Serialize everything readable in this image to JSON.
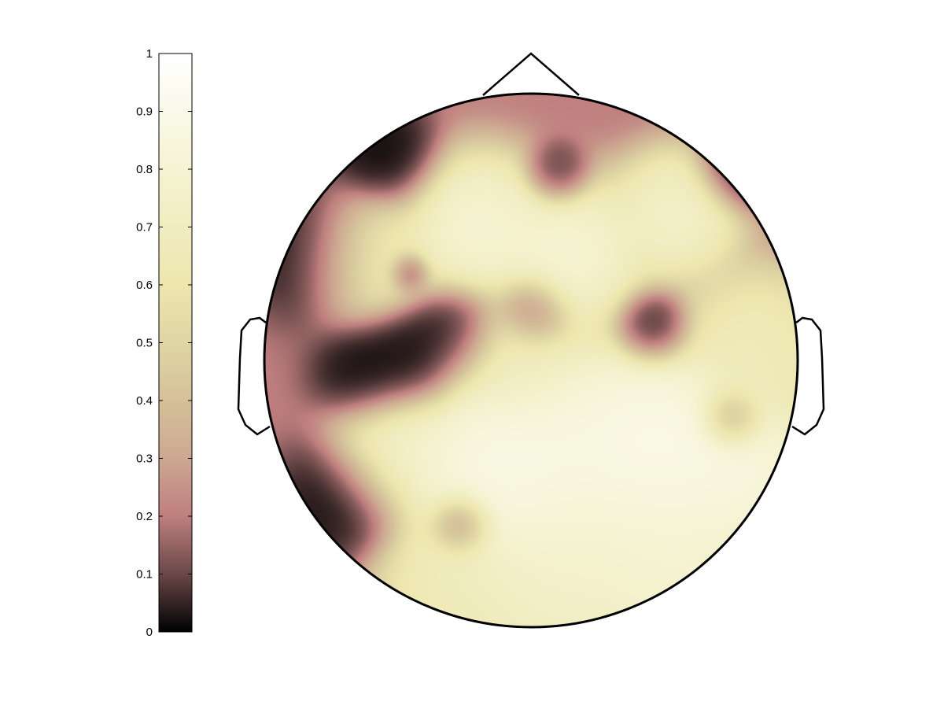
{
  "chart_data": {
    "type": "heatmap",
    "subtype": "scalp-topography",
    "title": "",
    "xlabel": "",
    "ylabel": "",
    "colorbar": {
      "position": "left",
      "clim": [
        0,
        1
      ],
      "ticks": [
        0,
        0.1,
        0.2,
        0.3,
        0.4,
        0.5,
        0.6,
        0.7,
        0.8,
        0.9,
        1
      ],
      "tick_labels": [
        "0",
        "0.1",
        "0.2",
        "0.3",
        "0.4",
        "0.5",
        "0.6",
        "0.7",
        "0.8",
        "0.9",
        "1"
      ],
      "colormap_stops": [
        {
          "v": 0.0,
          "color": "#000000"
        },
        {
          "v": 0.1,
          "color": "#6a4848"
        },
        {
          "v": 0.2,
          "color": "#bf7f7f"
        },
        {
          "v": 0.3,
          "color": "#cda891"
        },
        {
          "v": 0.45,
          "color": "#d9cc9f"
        },
        {
          "v": 0.6,
          "color": "#ede6ae"
        },
        {
          "v": 0.8,
          "color": "#f5f3d2"
        },
        {
          "v": 1.0,
          "color": "#ffffff"
        }
      ]
    },
    "head": {
      "outline": true,
      "nose": "top",
      "ears": [
        "left",
        "right"
      ]
    },
    "background_value": 0.2,
    "field_sources": [
      {
        "x": -0.8,
        "y": 0.4,
        "value": 0.0,
        "spread": 0.13
      },
      {
        "x": -0.62,
        "y": -0.05,
        "value": 0.0,
        "spread": 0.1
      },
      {
        "x": -0.45,
        "y": 0.02,
        "value": 0.0,
        "spread": 0.1
      },
      {
        "x": -0.28,
        "y": 0.1,
        "value": 0.0,
        "spread": 0.09
      },
      {
        "x": -0.72,
        "y": -0.52,
        "value": 0.0,
        "spread": 0.12
      },
      {
        "x": -0.55,
        "y": 0.77,
        "value": 0.0,
        "spread": 0.1
      },
      {
        "x": 0.78,
        "y": 0.72,
        "value": 0.0,
        "spread": 0.08
      },
      {
        "x": 0.46,
        "y": 0.12,
        "value": 0.0,
        "spread": 0.07
      },
      {
        "x": 0.1,
        "y": 0.7,
        "value": 0.05,
        "spread": 0.06
      },
      {
        "x": -0.46,
        "y": 0.33,
        "value": 0.05,
        "spread": 0.04
      },
      {
        "x": -0.26,
        "y": -0.62,
        "value": 0.08,
        "spread": 0.06
      },
      {
        "x": 0.75,
        "y": -0.22,
        "value": 0.15,
        "spread": 0.06
      },
      {
        "x": 0.0,
        "y": 0.18,
        "value": 0.15,
        "spread": 0.07
      },
      {
        "x": -0.62,
        "y": 0.38,
        "value": 0.75,
        "spread": 0.12
      },
      {
        "x": -0.2,
        "y": 0.5,
        "value": 0.85,
        "spread": 0.14
      },
      {
        "x": 0.15,
        "y": 0.4,
        "value": 0.85,
        "spread": 0.14
      },
      {
        "x": 0.55,
        "y": 0.55,
        "value": 0.8,
        "spread": 0.12
      },
      {
        "x": -0.08,
        "y": 0.0,
        "value": 0.7,
        "spread": 0.12
      },
      {
        "x": -0.52,
        "y": -0.35,
        "value": 0.8,
        "spread": 0.12
      },
      {
        "x": -0.1,
        "y": -0.4,
        "value": 0.95,
        "spread": 0.2
      },
      {
        "x": 0.25,
        "y": -0.35,
        "value": 0.9,
        "spread": 0.2
      },
      {
        "x": 0.5,
        "y": -0.3,
        "value": 0.95,
        "spread": 0.18
      },
      {
        "x": 0.8,
        "y": -0.42,
        "value": 0.9,
        "spread": 0.16
      },
      {
        "x": 0.1,
        "y": -0.8,
        "value": 0.8,
        "spread": 0.22
      },
      {
        "x": 0.55,
        "y": -0.75,
        "value": 0.85,
        "spread": 0.2
      },
      {
        "x": 0.85,
        "y": 0.05,
        "value": 0.7,
        "spread": 0.15
      },
      {
        "x": -0.3,
        "y": -0.88,
        "value": 0.7,
        "spread": 0.15
      }
    ]
  }
}
